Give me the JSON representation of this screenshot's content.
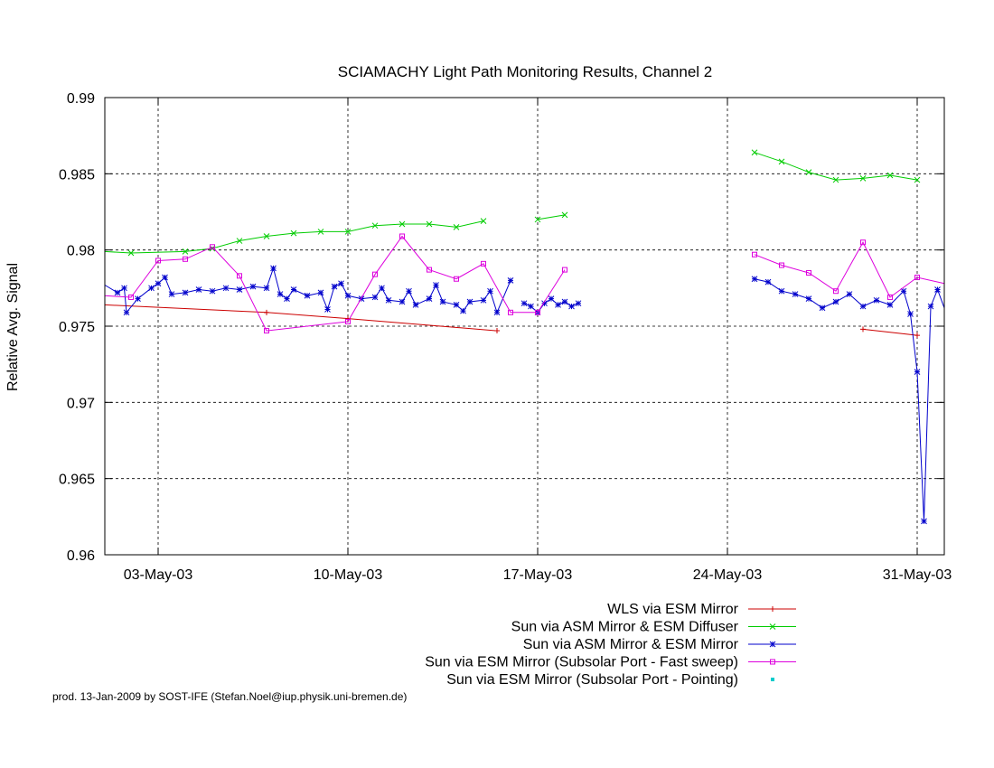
{
  "chart_data": {
    "type": "line",
    "title": "SCIAMACHY Light Path Monitoring Results, Channel 2",
    "xlabel": "",
    "ylabel": "Relative Avg. Signal",
    "xlim": [
      "2003-04-30",
      "2003-05-31"
    ],
    "ylim": [
      0.96,
      0.99
    ],
    "x_ticks": [
      "03-May-03",
      "10-May-03",
      "17-May-03",
      "24-May-03",
      "31-May-03"
    ],
    "x_tick_dates": [
      "2003-05-03",
      "2003-05-10",
      "2003-05-17",
      "2003-05-24",
      "2003-05-31"
    ],
    "y_ticks": [
      "0.96",
      "0.965",
      "0.97",
      "0.975",
      "0.98",
      "0.985",
      "0.99"
    ],
    "y_tick_values": [
      0.96,
      0.965,
      0.97,
      0.975,
      0.98,
      0.985,
      0.99
    ],
    "grid": true,
    "legend_position": "bottom-right",
    "credit": "prod. 13-Jan-2009 by SOST-IFE (Stefan.Noel@iup.physik.uni-bremen.de)",
    "series": [
      {
        "name": "WLS via ESM Mirror",
        "color": "#cc0000",
        "marker": "plus",
        "segments": [
          [
            [
              "2003-04-30T00:00",
              0.9764
            ],
            [
              "2003-05-07T00:00",
              0.9759
            ],
            [
              "2003-05-10T00:00",
              0.9755
            ],
            [
              "2003-05-15T12:00",
              0.9747
            ]
          ],
          [
            [
              "2003-05-29T00:00",
              0.9748
            ],
            [
              "2003-05-31T00:00",
              0.9744
            ]
          ]
        ]
      },
      {
        "name": "Sun via ASM Mirror & ESM Diffuser",
        "color": "#00cc00",
        "marker": "cross",
        "segments": [
          [
            [
              "2003-04-30T00:00",
              0.9799
            ],
            [
              "2003-05-02T00:00",
              0.9798
            ],
            [
              "2003-05-04T00:00",
              0.9799
            ],
            [
              "2003-05-05T00:00",
              0.9801
            ],
            [
              "2003-05-06T00:00",
              0.9806
            ],
            [
              "2003-05-07T00:00",
              0.9809
            ],
            [
              "2003-05-08T00:00",
              0.9811
            ],
            [
              "2003-05-09T00:00",
              0.9812
            ],
            [
              "2003-05-10T00:00",
              0.9812
            ],
            [
              "2003-05-11T00:00",
              0.9816
            ],
            [
              "2003-05-12T00:00",
              0.9817
            ],
            [
              "2003-05-13T00:00",
              0.9817
            ],
            [
              "2003-05-14T00:00",
              0.9815
            ],
            [
              "2003-05-15T00:00",
              0.9819
            ]
          ],
          [
            [
              "2003-05-17T00:00",
              0.982
            ],
            [
              "2003-05-18T00:00",
              0.9823
            ]
          ],
          [
            [
              "2003-05-25T00:00",
              0.9864
            ],
            [
              "2003-05-26T00:00",
              0.9858
            ],
            [
              "2003-05-27T00:00",
              0.9851
            ],
            [
              "2003-05-28T00:00",
              0.9846
            ],
            [
              "2003-05-29T00:00",
              0.9847
            ],
            [
              "2003-05-30T00:00",
              0.9849
            ],
            [
              "2003-05-31T00:00",
              0.9846
            ]
          ]
        ]
      },
      {
        "name": "Sun via ASM Mirror & ESM Mirror",
        "color": "#0000cc",
        "marker": "star",
        "segments": [
          [
            [
              "2003-04-30T00:00",
              0.9777
            ],
            [
              "2003-05-01T12:00",
              0.9772
            ],
            [
              "2003-05-01T18:00",
              0.9775
            ],
            [
              "2003-05-01T20:00",
              0.9759
            ],
            [
              "2003-05-02T06:00",
              0.9768
            ],
            [
              "2003-05-02T18:00",
              0.9775
            ],
            [
              "2003-05-03T00:00",
              0.9778
            ],
            [
              "2003-05-03T06:00",
              0.9782
            ],
            [
              "2003-05-03T12:00",
              0.9771
            ],
            [
              "2003-05-04T00:00",
              0.9772
            ],
            [
              "2003-05-04T12:00",
              0.9774
            ],
            [
              "2003-05-05T00:00",
              0.9773
            ],
            [
              "2003-05-05T12:00",
              0.9775
            ],
            [
              "2003-05-06T00:00",
              0.9774
            ],
            [
              "2003-05-06T12:00",
              0.9776
            ],
            [
              "2003-05-07T00:00",
              0.9775
            ],
            [
              "2003-05-07T06:00",
              0.9788
            ],
            [
              "2003-05-07T12:00",
              0.9771
            ],
            [
              "2003-05-07T18:00",
              0.9768
            ],
            [
              "2003-05-08T00:00",
              0.9774
            ],
            [
              "2003-05-08T12:00",
              0.977
            ],
            [
              "2003-05-09T00:00",
              0.9772
            ],
            [
              "2003-05-09T06:00",
              0.9761
            ],
            [
              "2003-05-09T12:00",
              0.9776
            ],
            [
              "2003-05-09T18:00",
              0.9778
            ],
            [
              "2003-05-10T00:00",
              0.977
            ],
            [
              "2003-05-10T12:00",
              0.9768
            ],
            [
              "2003-05-11T00:00",
              0.9769
            ],
            [
              "2003-05-11T06:00",
              0.9775
            ],
            [
              "2003-05-11T12:00",
              0.9767
            ],
            [
              "2003-05-12T00:00",
              0.9766
            ],
            [
              "2003-05-12T06:00",
              0.9773
            ],
            [
              "2003-05-12T12:00",
              0.9764
            ],
            [
              "2003-05-13T00:00",
              0.9768
            ],
            [
              "2003-05-13T06:00",
              0.9777
            ],
            [
              "2003-05-13T12:00",
              0.9766
            ],
            [
              "2003-05-14T00:00",
              0.9764
            ],
            [
              "2003-05-14T06:00",
              0.976
            ],
            [
              "2003-05-14T12:00",
              0.9766
            ],
            [
              "2003-05-15T00:00",
              0.9767
            ],
            [
              "2003-05-15T06:00",
              0.9773
            ],
            [
              "2003-05-15T12:00",
              0.9759
            ],
            [
              "2003-05-16T00:00",
              0.978
            ]
          ],
          [
            [
              "2003-05-16T12:00",
              0.9765
            ],
            [
              "2003-05-16T18:00",
              0.9763
            ],
            [
              "2003-05-17T00:00",
              0.9759
            ],
            [
              "2003-05-17T06:00",
              0.9765
            ],
            [
              "2003-05-17T12:00",
              0.9768
            ],
            [
              "2003-05-17T18:00",
              0.9764
            ],
            [
              "2003-05-18T00:00",
              0.9766
            ],
            [
              "2003-05-18T06:00",
              0.9763
            ],
            [
              "2003-05-18T12:00",
              0.9765
            ]
          ],
          [
            [
              "2003-05-25T00:00",
              0.9781
            ],
            [
              "2003-05-25T12:00",
              0.9779
            ],
            [
              "2003-05-26T00:00",
              0.9773
            ],
            [
              "2003-05-26T12:00",
              0.9771
            ],
            [
              "2003-05-27T00:00",
              0.9768
            ],
            [
              "2003-05-27T12:00",
              0.9762
            ],
            [
              "2003-05-28T00:00",
              0.9766
            ],
            [
              "2003-05-28T12:00",
              0.9771
            ],
            [
              "2003-05-29T00:00",
              0.9763
            ],
            [
              "2003-05-29T12:00",
              0.9767
            ],
            [
              "2003-05-30T00:00",
              0.9764
            ],
            [
              "2003-05-30T12:00",
              0.9773
            ],
            [
              "2003-05-30T18:00",
              0.9758
            ],
            [
              "2003-05-31T00:00",
              0.972
            ],
            [
              "2003-05-31T06:00",
              0.9622
            ],
            [
              "2003-05-31T12:00",
              0.9763
            ],
            [
              "2003-05-31T18:00",
              0.9774
            ],
            [
              "2003-06-01T00:00",
              0.9762
            ]
          ]
        ]
      },
      {
        "name": "Sun via ESM Mirror (Subsolar Port - Fast sweep)",
        "color": "#dd00dd",
        "marker": "square",
        "segments": [
          [
            [
              "2003-04-30T00:00",
              0.9771
            ],
            [
              "2003-05-01T00:00",
              0.977
            ],
            [
              "2003-05-02T00:00",
              0.9769
            ],
            [
              "2003-05-03T00:00",
              0.9793
            ],
            [
              "2003-05-04T00:00",
              0.9794
            ],
            [
              "2003-05-05T00:00",
              0.9802
            ],
            [
              "2003-05-06T00:00",
              0.9783
            ],
            [
              "2003-05-07T00:00",
              0.9747
            ],
            [
              "2003-05-10T00:00",
              0.9753
            ],
            [
              "2003-05-11T00:00",
              0.9784
            ],
            [
              "2003-05-12T00:00",
              0.9809
            ],
            [
              "2003-05-13T00:00",
              0.9787
            ],
            [
              "2003-05-14T00:00",
              0.9781
            ],
            [
              "2003-05-15T00:00",
              0.9791
            ],
            [
              "2003-05-16T00:00",
              0.9759
            ],
            [
              "2003-05-17T00:00",
              0.9759
            ],
            [
              "2003-05-18T00:00",
              0.9787
            ]
          ],
          [
            [
              "2003-05-25T00:00",
              0.9797
            ],
            [
              "2003-05-26T00:00",
              0.979
            ],
            [
              "2003-05-27T00:00",
              0.9785
            ],
            [
              "2003-05-28T00:00",
              0.9773
            ],
            [
              "2003-05-29T00:00",
              0.9805
            ],
            [
              "2003-05-30T00:00",
              0.9769
            ],
            [
              "2003-05-31T00:00",
              0.9782
            ],
            [
              "2003-06-01T00:00",
              0.9778
            ]
          ]
        ]
      },
      {
        "name": "Sun via ESM Mirror (Subsolar Port - Pointing)",
        "color": "#00cccc",
        "marker": "dot",
        "segments": []
      }
    ]
  }
}
